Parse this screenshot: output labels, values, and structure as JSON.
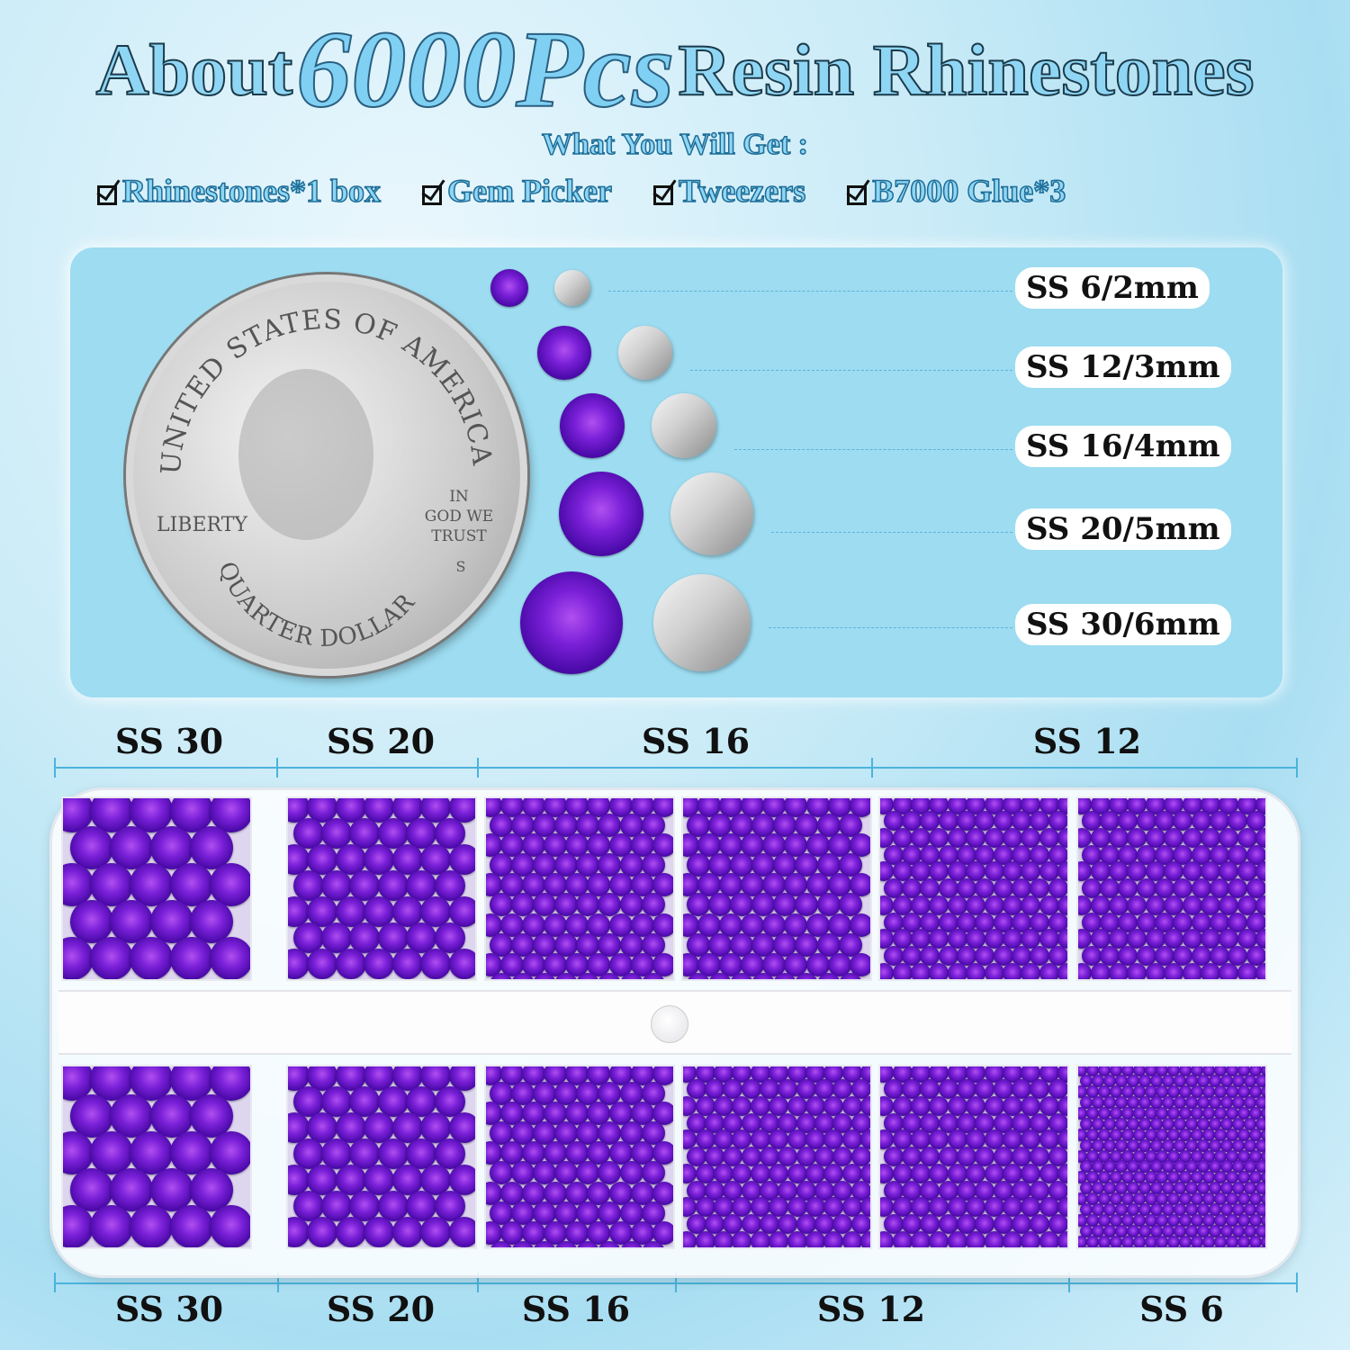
{
  "header": {
    "title_prefix": "About",
    "title_count": "6000Pcs",
    "title_suffix": "Resin Rhinestones",
    "subtitle": "What You Will Get :",
    "items": [
      "Rhinestones*1 box",
      "Gem Picker",
      "Tweezers",
      "B7000 Glue*3"
    ]
  },
  "coin": {
    "top_text": "UNITED STATES OF AMERICA",
    "motto": [
      "IN",
      "GOD WE",
      "TRUST"
    ],
    "liberty": "LIBERTY",
    "mint": "S",
    "bottom_text": "QUARTER DOLLAR"
  },
  "size_chart": [
    "SS 6/2mm",
    "SS 12/3mm",
    "SS 16/4mm",
    "SS 20/5mm",
    "SS 30/6mm"
  ],
  "tray": {
    "top_labels": [
      "SS 30",
      "SS 20",
      "SS 16",
      "SS 12"
    ],
    "bottom_labels": [
      "SS 30",
      "SS 20",
      "SS 16",
      "SS 12",
      "SS 6"
    ]
  },
  "colors": {
    "stone": "#6a1bd0",
    "accent": "#8fd6f4",
    "panel": "#9ddcf1"
  }
}
